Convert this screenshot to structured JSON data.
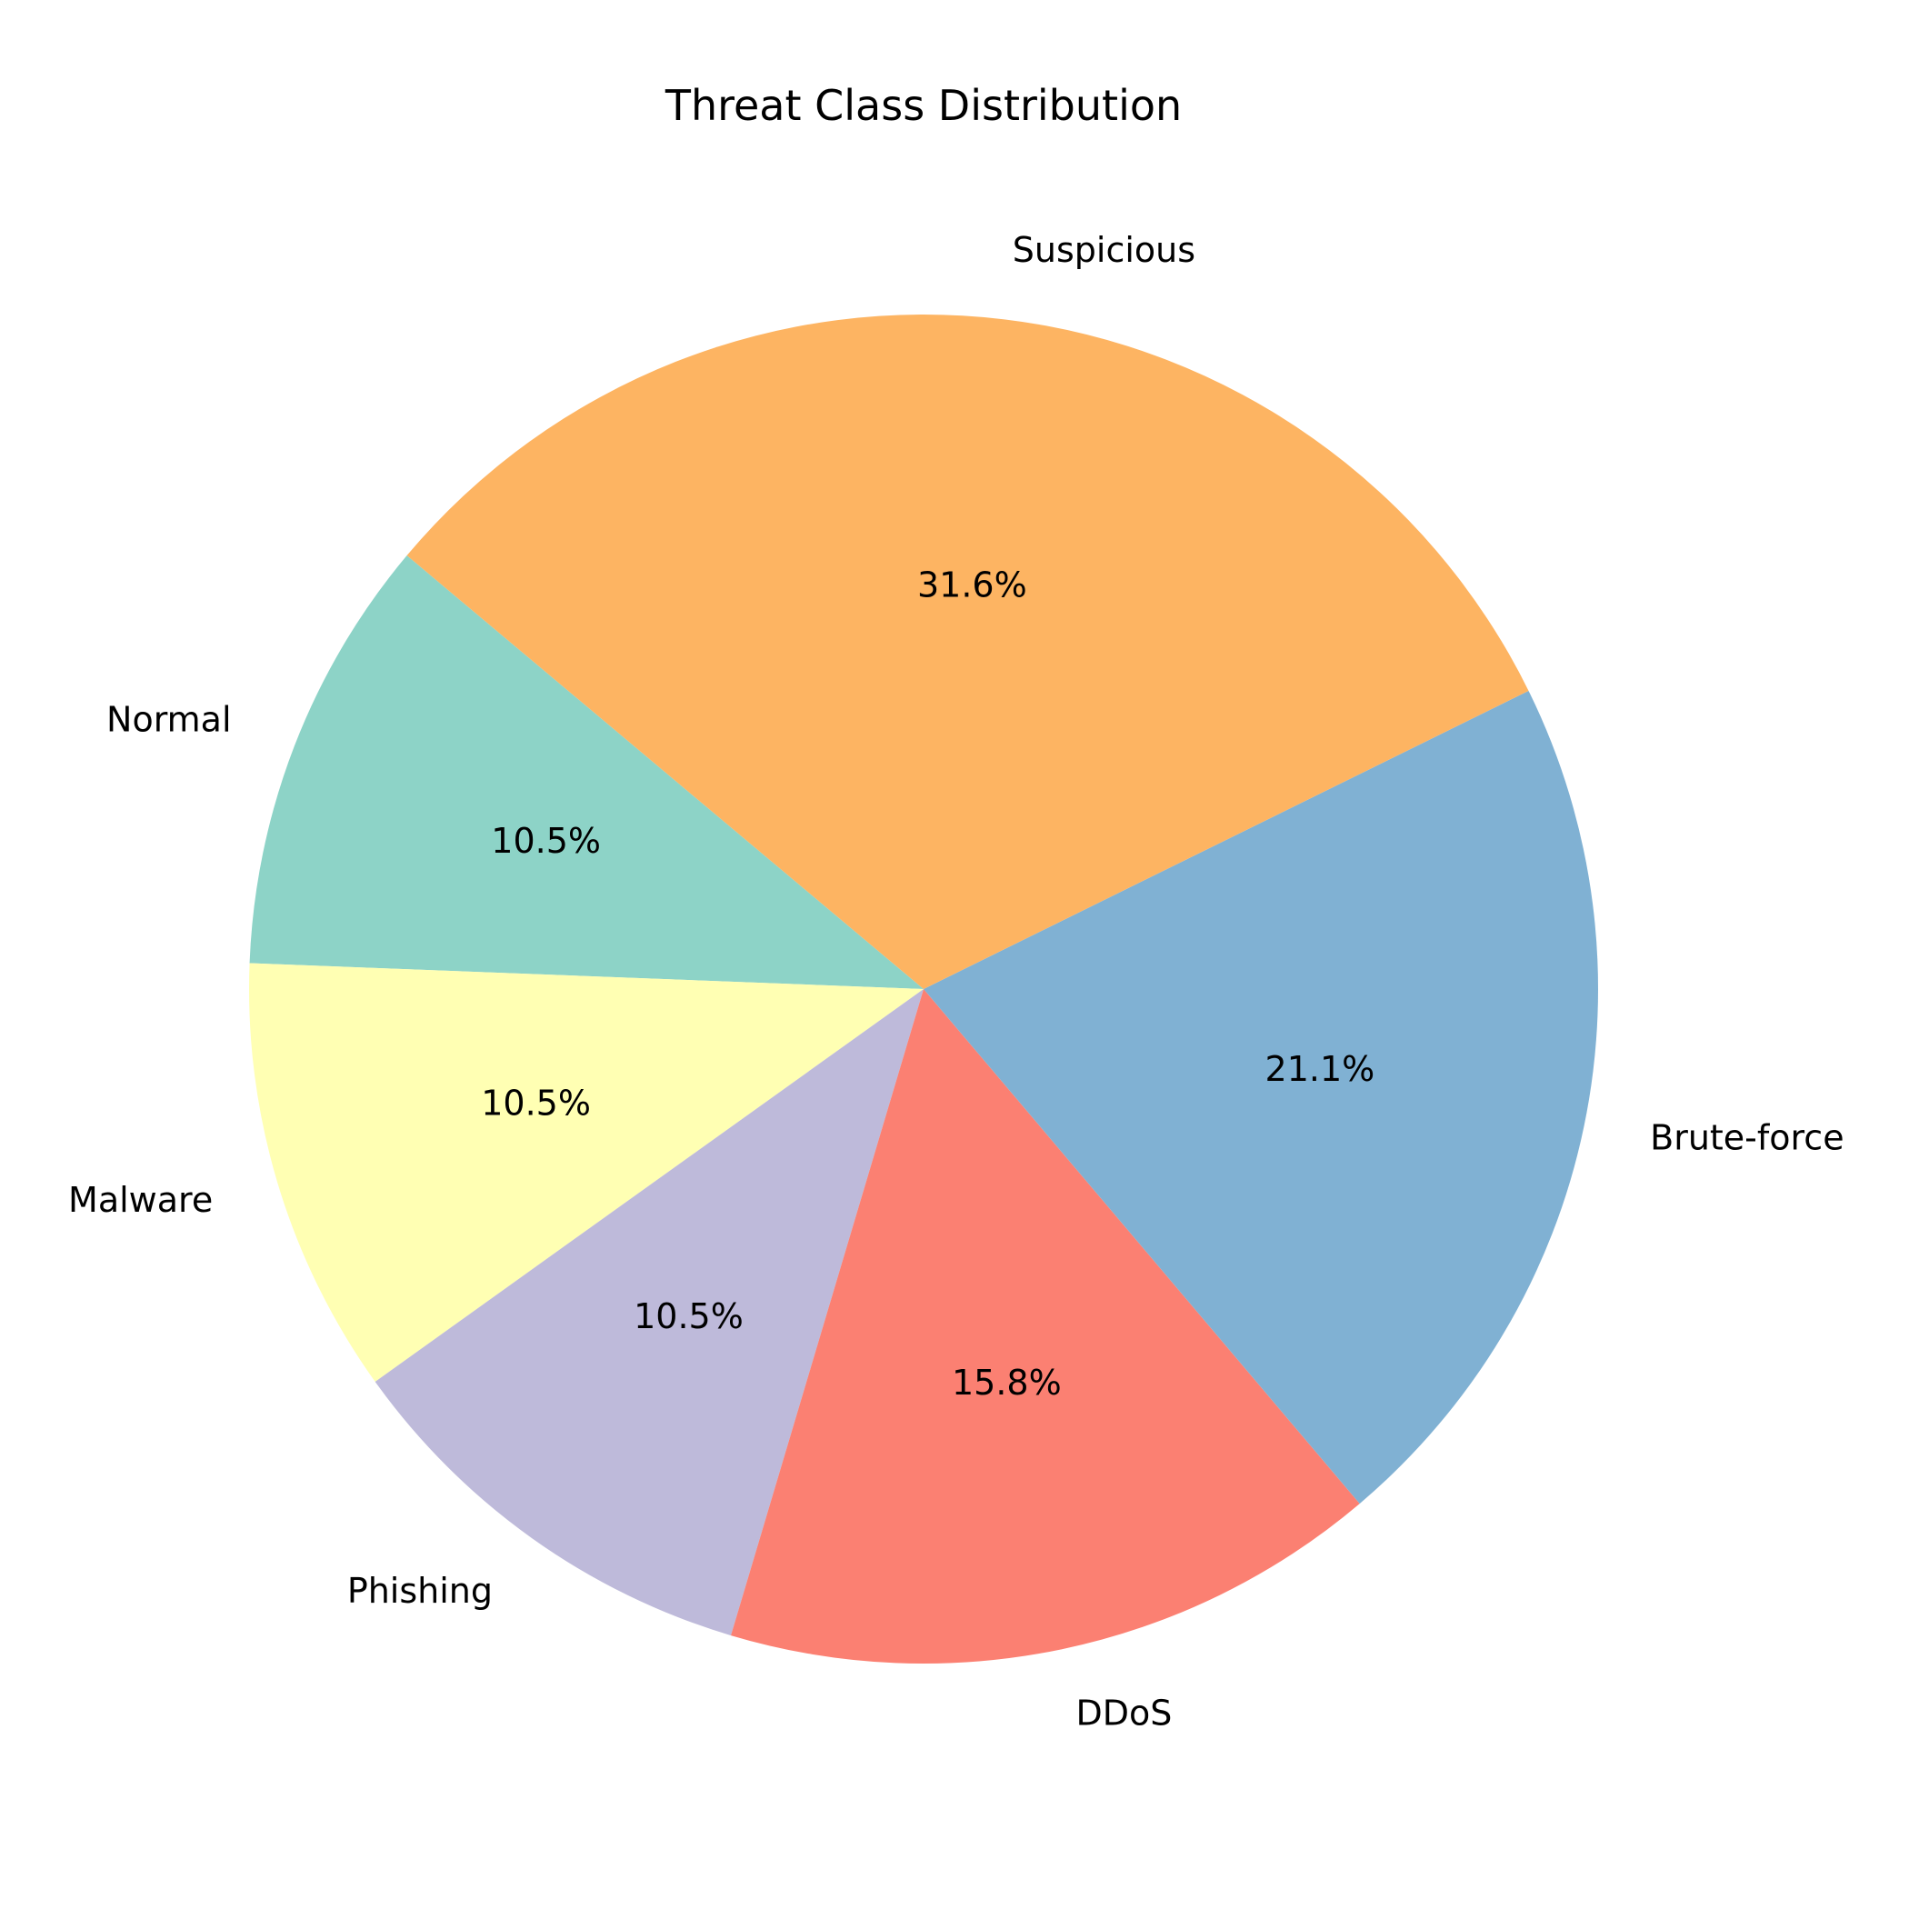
{
  "chart_data": {
    "type": "pie",
    "title": "Threat Class Distribution",
    "start_angle_deg": 140,
    "direction": "counterclockwise",
    "slices": [
      {
        "label": "Normal",
        "value": 10.5,
        "pct_label": "10.5%",
        "color": "#8dd3c7"
      },
      {
        "label": "Malware",
        "value": 10.5,
        "pct_label": "10.5%",
        "color": "#ffffb3"
      },
      {
        "label": "Phishing",
        "value": 10.5,
        "pct_label": "10.5%",
        "color": "#bebada"
      },
      {
        "label": "DDoS",
        "value": 15.8,
        "pct_label": "15.8%",
        "color": "#fb8072"
      },
      {
        "label": "Brute-force",
        "value": 21.1,
        "pct_label": "21.1%",
        "color": "#80b1d3"
      },
      {
        "label": "Suspicious",
        "value": 31.6,
        "pct_label": "31.6%",
        "color": "#fdb462"
      }
    ]
  }
}
